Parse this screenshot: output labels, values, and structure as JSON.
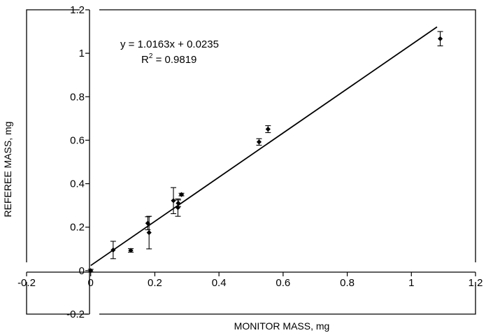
{
  "chart_data": {
    "type": "scatter",
    "xlabel": "MONITOR MASS, mg",
    "ylabel": "REFEREE MASS, mg",
    "xlim": [
      -0.2,
      1.2
    ],
    "ylim": [
      -0.2,
      1.2
    ],
    "x_ticks": [
      -0.2,
      0,
      0.2,
      0.4,
      0.6,
      0.8,
      1,
      1.2
    ],
    "x_tick_labels": [
      "-0.2",
      "0",
      "0.2",
      "0.4",
      "0.6",
      "0.8",
      "1",
      "1.2"
    ],
    "y_ticks": [
      -0.2,
      0,
      0.2,
      0.4,
      0.6,
      0.8,
      1,
      1.2
    ],
    "y_tick_labels": [
      "-0.2",
      "0",
      "0.2",
      "0.4",
      "0.6",
      "0.8",
      "1",
      "1.2"
    ],
    "grid": false,
    "points": [
      {
        "x": 0.0,
        "y": 0.0,
        "err": 0.006
      },
      {
        "x": 0.07,
        "y": 0.095,
        "err": 0.04
      },
      {
        "x": 0.125,
        "y": 0.093,
        "err": 0.008
      },
      {
        "x": 0.178,
        "y": 0.218,
        "err": 0.03
      },
      {
        "x": 0.182,
        "y": 0.175,
        "err": 0.075
      },
      {
        "x": 0.258,
        "y": 0.322,
        "err": 0.06
      },
      {
        "x": 0.272,
        "y": 0.29,
        "err": 0.04
      },
      {
        "x": 0.273,
        "y": 0.31,
        "err": 0.015
      },
      {
        "x": 0.283,
        "y": 0.35,
        "err": 0.006
      },
      {
        "x": 0.525,
        "y": 0.592,
        "err": 0.015
      },
      {
        "x": 0.553,
        "y": 0.651,
        "err": 0.016
      },
      {
        "x": 1.09,
        "y": 1.067,
        "err": 0.033
      }
    ],
    "trendline": {
      "slope": 1.0163,
      "intercept": 0.0235,
      "x_range": [
        0,
        1.08
      ]
    },
    "annotation": {
      "equation": "y = 1.0163x + 0.0235",
      "r2_base": "R",
      "r2_sup": "2",
      "r2_value": " = 0.9819"
    }
  }
}
